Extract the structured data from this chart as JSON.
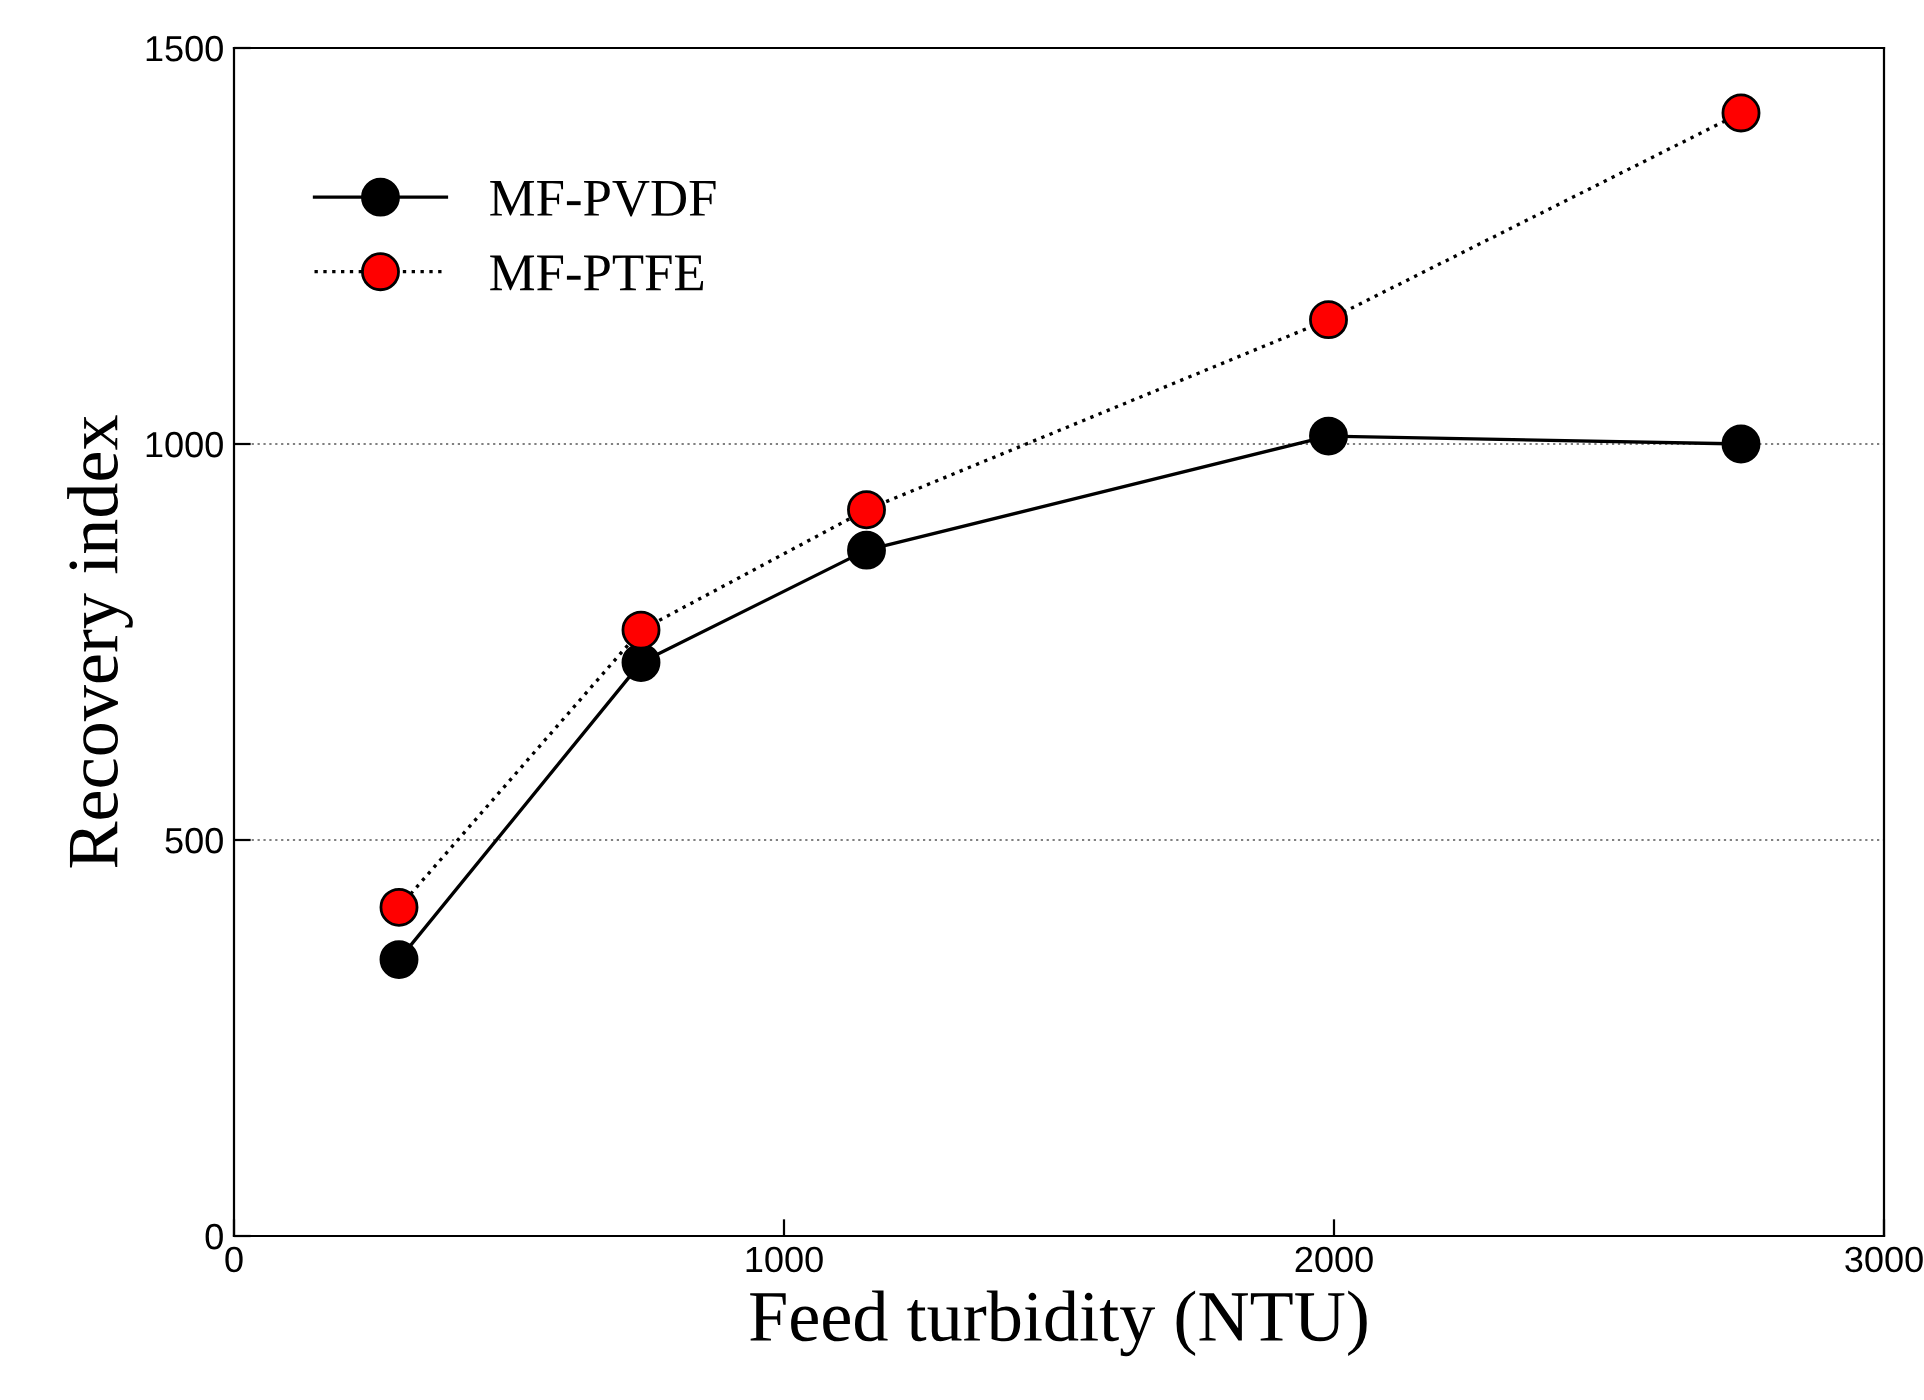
{
  "chart_data": {
    "type": "line",
    "xlabel": "Feed turbidity (NTU)",
    "ylabel": "Recovery index",
    "x": [
      300,
      740,
      1150,
      1990,
      2740
    ],
    "series": [
      {
        "name": "MF-PVDF",
        "color": "#000000",
        "values": [
          349,
          724,
          866,
          1010,
          1000
        ],
        "line_style": "solid"
      },
      {
        "name": "MF-PTFE",
        "color": "#ff0000",
        "values": [
          415,
          765,
          917,
          1157,
          1418
        ],
        "line_style": "dotted"
      }
    ],
    "xlim": [
      0,
      3000
    ],
    "xticks": [
      0,
      1000,
      2000,
      3000
    ],
    "ylim": [
      0,
      1500
    ],
    "yticks": [
      0,
      500,
      1000,
      1500
    ],
    "grid": "y",
    "legend": "top left",
    "marker": "circle"
  }
}
